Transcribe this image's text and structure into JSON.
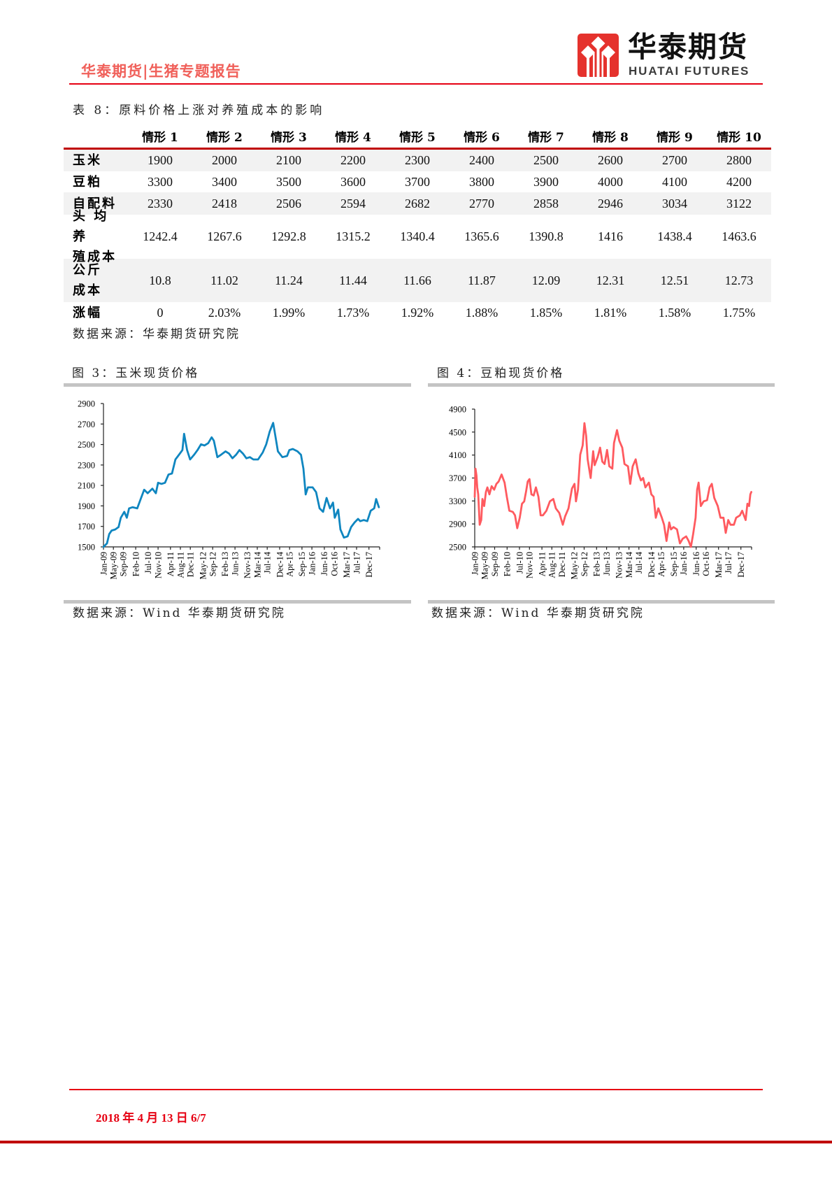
{
  "header": {
    "report_title": "华泰期货|生猪专题报告",
    "logo_cn": "华泰期货",
    "logo_en": "HUATAI FUTURES",
    "logo_icon": "huatai-diamond-logo-icon"
  },
  "table": {
    "title": "表 8：原料价格上涨对养殖成本的影响",
    "columns": [
      "",
      "情形 1",
      "情形 2",
      "情形 3",
      "情形 4",
      "情形 5",
      "情形 6",
      "情形 7",
      "情形 8",
      "情形 9",
      "情形 10"
    ],
    "rows": [
      {
        "label": "玉米",
        "values": [
          "1900",
          "2000",
          "2100",
          "2200",
          "2300",
          "2400",
          "2500",
          "2600",
          "2700",
          "2800"
        ]
      },
      {
        "label": "豆粕",
        "values": [
          "3300",
          "3400",
          "3500",
          "3600",
          "3700",
          "3800",
          "3900",
          "4000",
          "4100",
          "4200"
        ]
      },
      {
        "label": "自配料",
        "values": [
          "2330",
          "2418",
          "2506",
          "2594",
          "2682",
          "2770",
          "2858",
          "2946",
          "3034",
          "3122"
        ]
      },
      {
        "label": "头 均 养\n殖成本",
        "values": [
          "1242.4",
          "1267.6",
          "1292.8",
          "1315.2",
          "1340.4",
          "1365.6",
          "1390.8",
          "1416",
          "1438.4",
          "1463.6"
        ]
      },
      {
        "label": "公斤\n成本",
        "values": [
          "10.8",
          "11.02",
          "11.24",
          "11.44",
          "11.66",
          "11.87",
          "12.09",
          "12.31",
          "12.51",
          "12.73"
        ]
      },
      {
        "label": "涨幅",
        "values": [
          "0",
          "2.03%",
          "1.99%",
          "1.73%",
          "1.92%",
          "1.88%",
          "1.85%",
          "1.81%",
          "1.58%",
          "1.75%"
        ]
      }
    ],
    "source": "数据来源：华泰期货研究院"
  },
  "figures": [
    {
      "title": "图 3：玉米现货价格",
      "source": "数据来源：Wind 华泰期货研究院"
    },
    {
      "title": "图 4：豆粕现货价格",
      "source": "数据来源：Wind  华泰期货研究院"
    }
  ],
  "footer": {
    "date_page": "2018 年 4 月 13 日 6/7"
  },
  "colors": {
    "brand_red": "#e60012",
    "dark_red": "#c00000",
    "header_title": "#f0605a",
    "logo_red": "#e5322d",
    "gray_bar": "#c4c4c4",
    "row_shade": "#f2f2f2",
    "corn_line": "#0f86c0",
    "soymeal_line": "#ff5a5f"
  },
  "chart_data": [
    {
      "type": "line",
      "title": "图 3：玉米现货价格",
      "xlabel": "",
      "ylabel": "",
      "grid": false,
      "legend": "none",
      "xtick_labels": [
        "Jan-09",
        "May-09",
        "Sep-09",
        "Feb-10",
        "Jul-10",
        "Nov-10",
        "Apr-11",
        "Aug-11",
        "Dec-11",
        "May-12",
        "Sep-12",
        "Feb-13",
        "Jun-13",
        "Nov-13",
        "Mar-14",
        "Jul-14",
        "Dec-14",
        "Apr-15",
        "Sep-15",
        "Jan-16",
        "Jun-16",
        "Oct-16",
        "Mar-17",
        "Jul-17",
        "Dec-17"
      ],
      "yticks": [
        1500,
        1700,
        1900,
        2100,
        2300,
        2500,
        2700,
        2900
      ],
      "ylim": [
        1500,
        2900
      ],
      "xlim": [
        0,
        111.3
      ],
      "series": [
        {
          "name": "玉米现货价格",
          "color": "#0f86c0",
          "x_month_index": [
            0,
            1.4,
            2.3,
            3.3,
            4.7,
            6.1,
            7,
            8.4,
            9.4,
            10.3,
            11.7,
            13.6,
            15,
            16.4,
            17.8,
            19.7,
            21.1,
            22,
            23.4,
            24.8,
            26.2,
            27.6,
            29,
            30.4,
            31.8,
            32.5,
            33.7,
            34.9,
            36.5,
            37.9,
            39.3,
            40.7,
            42.2,
            43.6,
            44.5,
            45.9,
            47.3,
            49.2,
            50.6,
            52,
            53.4,
            54.8,
            56.2,
            57.6,
            59,
            60.4,
            62.3,
            64.2,
            65.6,
            67,
            68.4,
            69.3,
            70.3,
            72.1,
            74,
            74.9,
            76.3,
            78.2,
            79.6,
            80.6,
            81.5,
            82.4,
            84.3,
            85.7,
            87.1,
            88.5,
            89.9,
            91.3,
            92.5,
            93.2,
            94.6,
            95.5,
            96.9,
            98.4,
            99.8,
            101.2,
            102.6,
            103.5,
            104.9,
            106.3,
            107.7,
            109.1,
            109.9,
            111
          ],
          "values": [
            1500,
            1534,
            1625,
            1660,
            1670,
            1694,
            1785,
            1842,
            1785,
            1876,
            1887,
            1876,
            1967,
            2058,
            2024,
            2069,
            2024,
            2126,
            2115,
            2126,
            2206,
            2217,
            2354,
            2399,
            2445,
            2604,
            2445,
            2354,
            2399,
            2445,
            2502,
            2490,
            2513,
            2570,
            2536,
            2376,
            2399,
            2433,
            2411,
            2365,
            2399,
            2445,
            2411,
            2365,
            2376,
            2354,
            2354,
            2422,
            2502,
            2627,
            2711,
            2581,
            2433,
            2376,
            2388,
            2445,
            2456,
            2433,
            2399,
            2263,
            2012,
            2081,
            2081,
            2035,
            1876,
            1842,
            1978,
            1876,
            1933,
            1785,
            1864,
            1670,
            1591,
            1603,
            1694,
            1739,
            1773,
            1751,
            1762,
            1751,
            1853,
            1876,
            1967,
            1887
          ]
        }
      ]
    },
    {
      "type": "line",
      "title": "图 4：豆粕现货价格",
      "xlabel": "",
      "ylabel": "",
      "grid": false,
      "legend": "none",
      "xtick_labels": [
        "Jan-09",
        "May-09",
        "Sep-09",
        "Feb-10",
        "Jul-10",
        "Nov-10",
        "Apr-11",
        "Aug-11",
        "Dec-11",
        "May-12",
        "Sep-12",
        "Feb-13",
        "Jun-13",
        "Nov-13",
        "Mar-14",
        "Jul-14",
        "Dec-14",
        "Apr-15",
        "Sep-15",
        "Jan-16",
        "Jun-16",
        "Oct-16",
        "Mar-17",
        "Jul-17",
        "Dec-17"
      ],
      "yticks": [
        2500,
        2900,
        3300,
        3700,
        4100,
        4500,
        4900
      ],
      "ylim": [
        2500,
        4900
      ],
      "xlim": [
        0,
        111.3
      ],
      "series": [
        {
          "name": "豆粕现货价格",
          "color": "#ff5a5f",
          "x_month_index": [
            0,
            0.3,
            0.7,
            1,
            1.4,
            2,
            2.6,
            3.1,
            3.8,
            4.5,
            5.1,
            5.9,
            6.8,
            7.8,
            8.7,
            9.6,
            10.8,
            12,
            12.9,
            13.9,
            15.3,
            16.2,
            17.1,
            18.1,
            19,
            19.9,
            20.7,
            21.3,
            22,
            22.8,
            23.7,
            24.6,
            25.6,
            26.5,
            27.4,
            28.8,
            30.2,
            31.6,
            32.6,
            34,
            35.4,
            36.3,
            37.7,
            39.1,
            40.1,
            40.7,
            41.5,
            42.4,
            43.4,
            44.1,
            44.8,
            45.4,
            46.6,
            47.6,
            48.2,
            49.4,
            50.4,
            51.3,
            52.2,
            53.2,
            54.1,
            55.3,
            56,
            57.2,
            58.1,
            59.3,
            60.2,
            61.6,
            62.5,
            63.5,
            64.7,
            65.8,
            66.8,
            67.7,
            68.6,
            70,
            71,
            71.9,
            72.8,
            73.8,
            75.2,
            76.1,
            77.1,
            78.2,
            78.9,
            79.9,
            81.3,
            82.5,
            83.6,
            85,
            86,
            86.9,
            87.8,
            88.8,
            89.4,
            90,
            90.9,
            92,
            93.4,
            94.4,
            95.3,
            96.3,
            97.7,
            98.8,
            100,
            100.9,
            101.9,
            102.8,
            104.2,
            105.1,
            106.6,
            107.5,
            108.9,
            109.6,
            110.3,
            110.8,
            111.2
          ],
          "values": [
            3374,
            3863,
            3741,
            3537,
            3415,
            2886,
            2968,
            3334,
            3212,
            3456,
            3537,
            3415,
            3558,
            3497,
            3598,
            3639,
            3761,
            3619,
            3374,
            3130,
            3110,
            3049,
            2825,
            3008,
            3252,
            3293,
            3476,
            3639,
            3680,
            3415,
            3395,
            3537,
            3374,
            3049,
            3049,
            3130,
            3293,
            3334,
            3171,
            3090,
            2886,
            3029,
            3171,
            3517,
            3598,
            3293,
            3497,
            4107,
            4269,
            4656,
            4432,
            4025,
            3700,
            4168,
            3924,
            4066,
            4229,
            3985,
            3944,
            4188,
            3903,
            3863,
            4310,
            4534,
            4351,
            4229,
            3944,
            3903,
            3598,
            3903,
            4025,
            3781,
            3659,
            3700,
            3537,
            3619,
            3415,
            3374,
            3008,
            3171,
            3008,
            2886,
            2602,
            2927,
            2805,
            2845,
            2805,
            2561,
            2642,
            2683,
            2602,
            2500,
            2724,
            3008,
            3497,
            3619,
            3212,
            3293,
            3314,
            3537,
            3598,
            3354,
            3212,
            3008,
            3008,
            2744,
            2968,
            2886,
            2886,
            3008,
            3049,
            3130,
            2968,
            3252,
            3212,
            3415,
            3456
          ]
        }
      ]
    }
  ]
}
